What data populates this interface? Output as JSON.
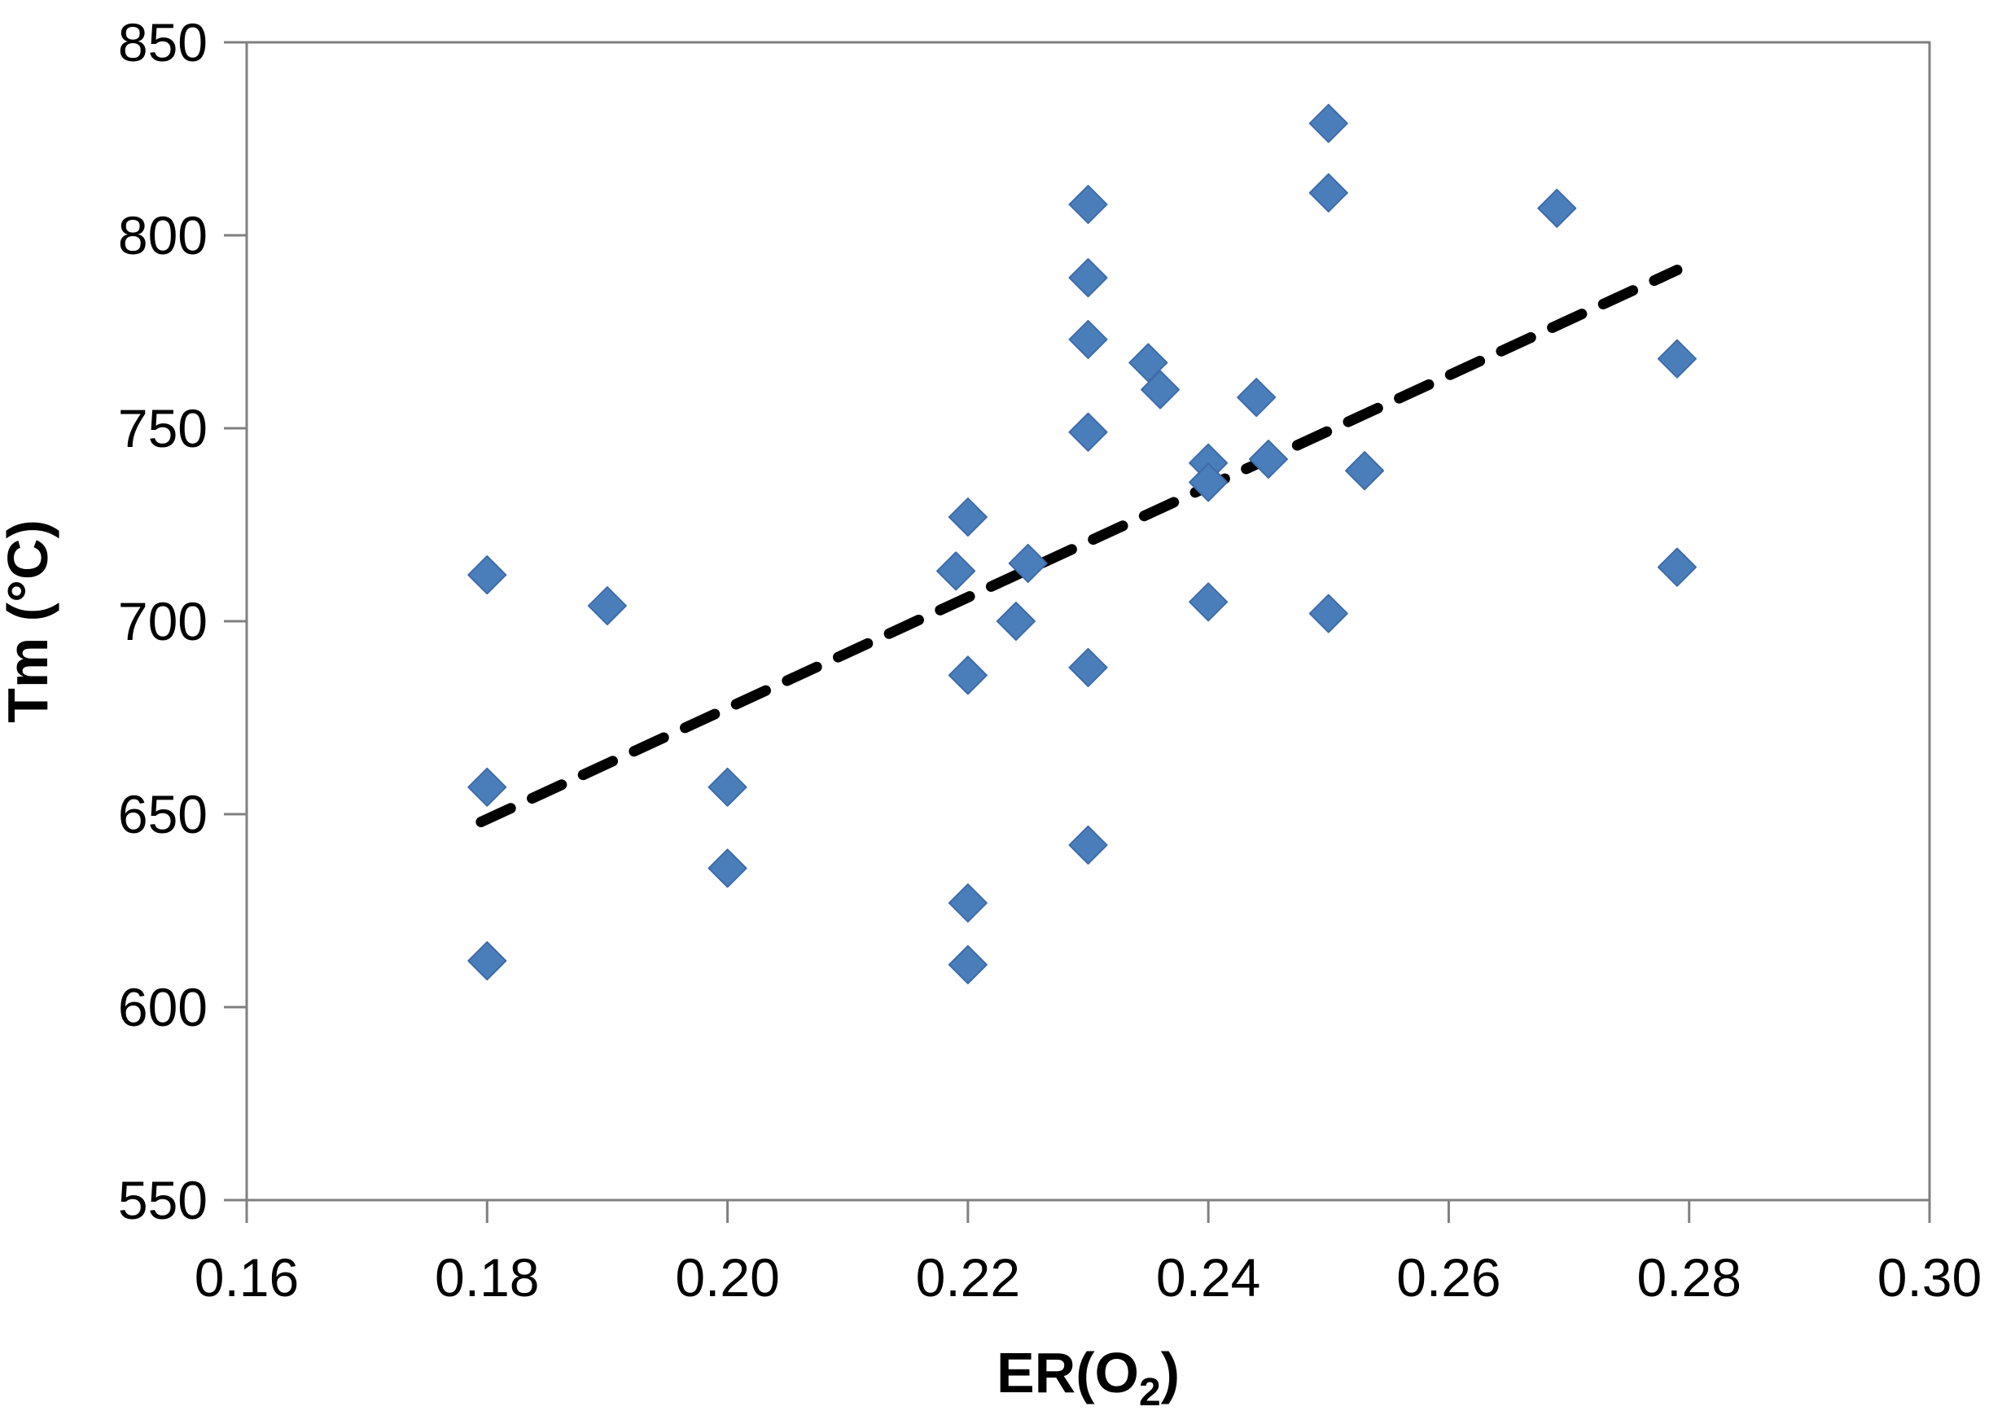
{
  "page": {
    "background_color": "#ffffff"
  },
  "chart_data": {
    "type": "scatter",
    "title": "",
    "ylabel": "Tm (°C)",
    "xlabel_main": "ER(O",
    "xlabel_sub": "2",
    "xlabel_close": ")",
    "xlim": [
      0.16,
      0.3
    ],
    "ylim": [
      550,
      850
    ],
    "x_ticks": [
      0.16,
      0.18,
      0.2,
      0.22,
      0.24,
      0.26,
      0.28,
      0.3
    ],
    "x_tick_labels": [
      "0.16",
      "0.18",
      "0.20",
      "0.22",
      "0.24",
      "0.26",
      "0.28",
      "0.30"
    ],
    "y_ticks": [
      550,
      600,
      650,
      700,
      750,
      800,
      850
    ],
    "y_tick_labels": [
      "550",
      "600",
      "650",
      "700",
      "750",
      "800",
      "850"
    ],
    "grid": false,
    "legend_position": "none",
    "axis_line_color": "#808080",
    "text_color": "#000000",
    "marker": {
      "shape": "diamond",
      "fill_color": "#4a7ebb",
      "edge_color": "#3e6ca8",
      "half_size_px": 23
    },
    "points": [
      [
        0.18,
        712
      ],
      [
        0.18,
        657
      ],
      [
        0.18,
        612
      ],
      [
        0.19,
        704
      ],
      [
        0.2,
        657
      ],
      [
        0.2,
        636
      ],
      [
        0.219,
        713
      ],
      [
        0.22,
        727
      ],
      [
        0.22,
        686
      ],
      [
        0.22,
        627
      ],
      [
        0.22,
        611
      ],
      [
        0.224,
        700
      ],
      [
        0.225,
        715
      ],
      [
        0.23,
        808
      ],
      [
        0.23,
        789
      ],
      [
        0.23,
        773
      ],
      [
        0.23,
        749
      ],
      [
        0.23,
        688
      ],
      [
        0.23,
        642
      ],
      [
        0.235,
        767
      ],
      [
        0.236,
        760
      ],
      [
        0.24,
        741
      ],
      [
        0.24,
        736
      ],
      [
        0.24,
        705
      ],
      [
        0.244,
        758
      ],
      [
        0.245,
        742
      ],
      [
        0.25,
        829
      ],
      [
        0.25,
        811
      ],
      [
        0.25,
        702
      ],
      [
        0.253,
        739
      ],
      [
        0.269,
        807
      ],
      [
        0.279,
        768
      ],
      [
        0.279,
        714
      ]
    ],
    "trendline": {
      "style": "dashed",
      "color": "#000000",
      "x1": 0.1795,
      "y1": 648,
      "x2": 0.279,
      "y2": 791
    }
  }
}
